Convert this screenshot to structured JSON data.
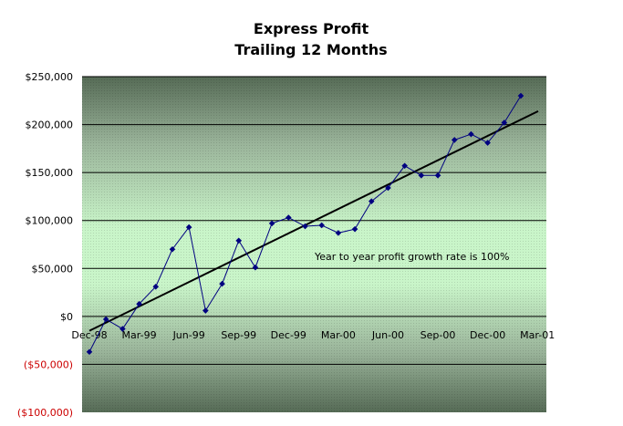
{
  "chart_data": {
    "type": "line",
    "title": [
      "Express Profit",
      "Trailing 12 Months"
    ],
    "xlabel": "",
    "ylabel": "",
    "ylim": [
      -100000,
      250000
    ],
    "yticks": [
      {
        "value": 250000,
        "label": "$250,000"
      },
      {
        "value": 200000,
        "label": "$200,000"
      },
      {
        "value": 150000,
        "label": "$150,000"
      },
      {
        "value": 100000,
        "label": "$100,000"
      },
      {
        "value": 50000,
        "label": "$50,000"
      },
      {
        "value": 0,
        "label": "$0"
      },
      {
        "value": -50000,
        "label": "($50,000)"
      },
      {
        "value": -100000,
        "label": "($100,000)"
      }
    ],
    "xticks": [
      "Dec-98",
      "Mar-99",
      "Jun-99",
      "Sep-99",
      "Dec-99",
      "Mar-00",
      "Jun-00",
      "Sep-00",
      "Dec-00",
      "Mar-01"
    ],
    "grid": true,
    "legend": "none",
    "series": [
      {
        "values": [
          -37000,
          -3000,
          -13000,
          13000,
          31000,
          70000,
          93000,
          6000,
          34000,
          79000,
          51000,
          97000,
          103000,
          94000,
          95000,
          87000,
          91000,
          120000,
          134000,
          157000,
          147000,
          147000,
          184000,
          190000,
          181000,
          202000,
          230000
        ]
      }
    ],
    "trendline": {
      "start": -15000,
      "end": 214000
    },
    "annotation": "Year to year profit growth rate is 100%",
    "colors": {
      "series": "#000080",
      "trend": "#000000",
      "negative_labels": "#cc0000",
      "plot_edge": "#566b56",
      "plot_center": "#c9f5c9"
    }
  }
}
